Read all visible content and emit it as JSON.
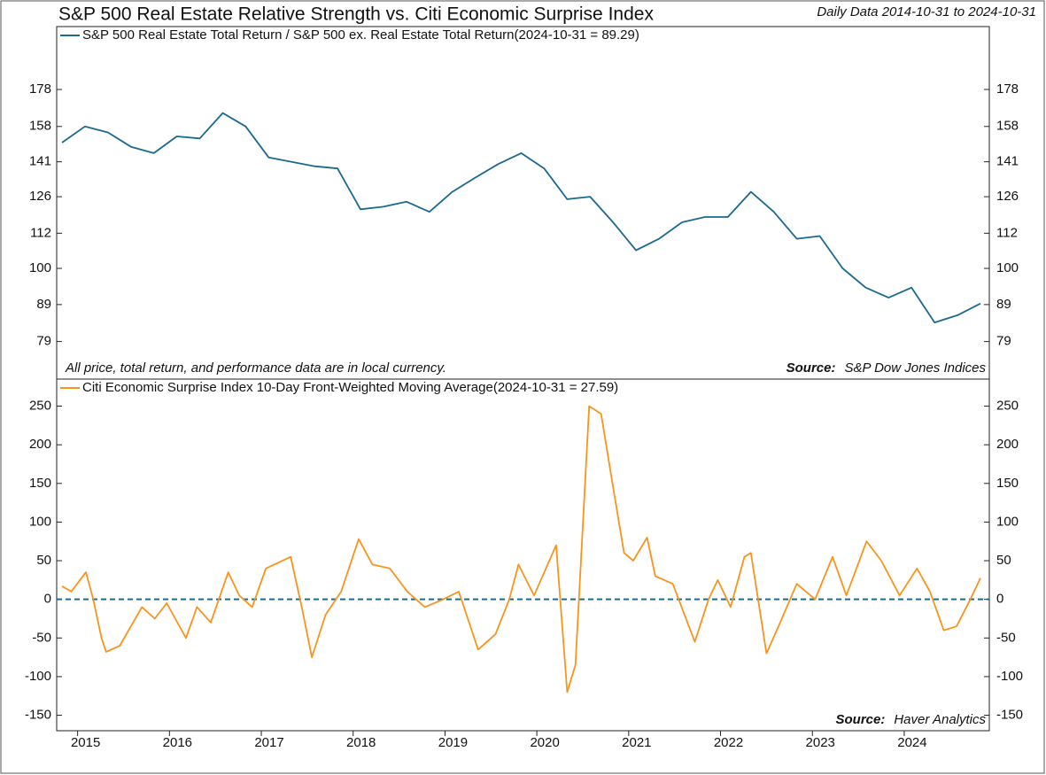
{
  "title": "S&P 500 Real Estate Relative Strength vs. Citi Economic Surprise Index",
  "subtitle": "Daily Data 2014-10-31 to 2024-10-31",
  "chart_data": [
    {
      "type": "line",
      "log_scale": true,
      "x": [
        2014.83,
        2015.08,
        2015.33,
        2015.58,
        2015.83,
        2016.08,
        2016.33,
        2016.58,
        2016.83,
        2017.08,
        2017.33,
        2017.58,
        2017.83,
        2018.08,
        2018.33,
        2018.58,
        2018.83,
        2019.08,
        2019.33,
        2019.58,
        2019.83,
        2020.08,
        2020.33,
        2020.58,
        2020.83,
        2021.08,
        2021.33,
        2021.58,
        2021.83,
        2022.08,
        2022.33,
        2022.58,
        2022.83,
        2023.08,
        2023.33,
        2023.58,
        2023.83,
        2024.08,
        2024.33,
        2024.58,
        2024.83
      ],
      "series": [
        {
          "name": "S&P 500 Real Estate Total Return / S&P 500 ex. Real Estate Total Return(2024-10-31 = 89.29)",
          "color": "#1a6a8e",
          "values": [
            150,
            158,
            155,
            148,
            145,
            153,
            152,
            165,
            158,
            143,
            141,
            139,
            138,
            121,
            122,
            124,
            120,
            128,
            134,
            140,
            145,
            138,
            125,
            126,
            116,
            106,
            110,
            116,
            118,
            118,
            128,
            120,
            110,
            111,
            100,
            94,
            91,
            94,
            84,
            86,
            89.29
          ]
        }
      ],
      "xlim": [
        2014.83,
        2024.83
      ],
      "ylim": [
        70,
        218
      ],
      "yticks": [
        79,
        89,
        100,
        112,
        126,
        141,
        158,
        178
      ],
      "note": "All price, total return, and performance data are in local currency.",
      "source_label": "Source:",
      "source": "S&P Dow Jones Indices"
    },
    {
      "type": "line",
      "x": [
        2014.83,
        2014.93,
        2015.09,
        2015.17,
        2015.26,
        2015.31,
        2015.46,
        2015.7,
        2015.84,
        2015.97,
        2016.18,
        2016.3,
        2016.45,
        2016.64,
        2016.76,
        2016.9,
        2017.05,
        2017.32,
        2017.44,
        2017.55,
        2017.7,
        2017.87,
        2018.06,
        2018.21,
        2018.4,
        2018.59,
        2018.78,
        2018.98,
        2019.15,
        2019.36,
        2019.55,
        2019.7,
        2019.8,
        2019.97,
        2020.21,
        2020.33,
        2020.42,
        2020.57,
        2020.7,
        2020.81,
        2020.95,
        2021.05,
        2021.2,
        2021.29,
        2021.48,
        2021.72,
        2021.87,
        2021.97,
        2022.11,
        2022.26,
        2022.33,
        2022.5,
        2022.65,
        2022.83,
        2023.03,
        2023.22,
        2023.37,
        2023.59,
        2023.75,
        2023.95,
        2024.14,
        2024.28,
        2024.43,
        2024.57,
        2024.72,
        2024.83
      ],
      "series": [
        {
          "name": "Citi Economic Surprise Index 10-Day Front-Weighted Moving Average(2024-10-31 = 27.59)",
          "color": "#f7941d",
          "values": [
            17,
            10,
            35,
            0,
            -50,
            -68,
            -60,
            -10,
            -25,
            -5,
            -50,
            -10,
            -30,
            35,
            5,
            -10,
            40,
            55,
            -10,
            -75,
            -20,
            10,
            78,
            45,
            40,
            10,
            -10,
            0,
            10,
            -65,
            -45,
            0,
            45,
            5,
            70,
            -120,
            -85,
            250,
            240,
            160,
            60,
            50,
            80,
            30,
            20,
            -55,
            0,
            25,
            -10,
            55,
            60,
            -70,
            -30,
            20,
            0,
            55,
            5,
            75,
            50,
            5,
            40,
            10,
            -40,
            -35,
            0,
            27.59
          ]
        }
      ],
      "xlim": [
        2014.83,
        2024.83
      ],
      "xticks": [
        2015,
        2016,
        2017,
        2018,
        2019,
        2020,
        2021,
        2022,
        2023,
        2024
      ],
      "ylim": [
        -170,
        285
      ],
      "yticks": [
        -150,
        -100,
        -50,
        0,
        50,
        100,
        150,
        200,
        250
      ],
      "hline": 0,
      "source_label": "Source:",
      "source": "Haver Analytics"
    }
  ]
}
